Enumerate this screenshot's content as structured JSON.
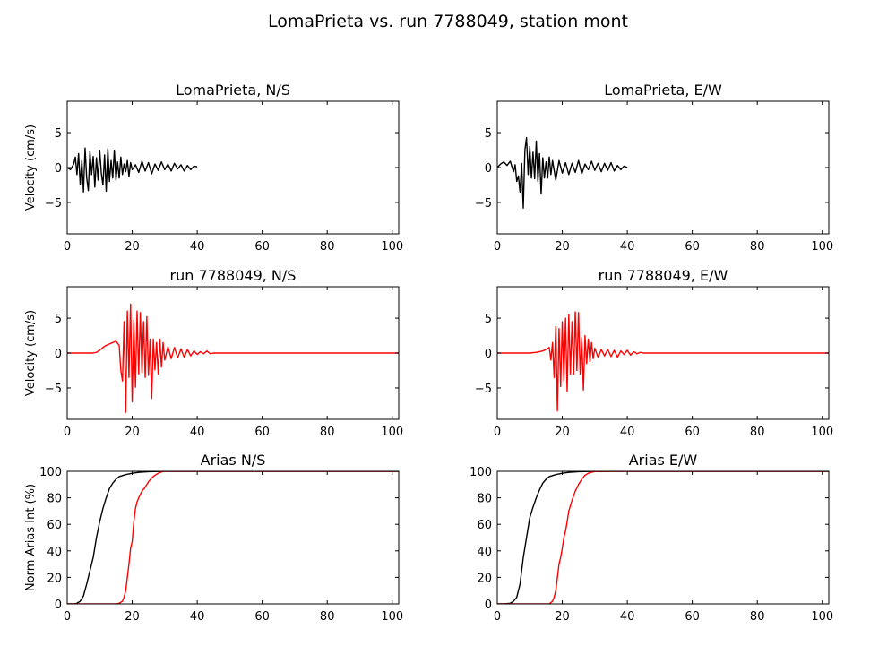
{
  "figure": {
    "suptitle": "LomaPrieta vs. run 7788049, station mont"
  },
  "colors": {
    "recorded": "#000000",
    "simulated": "#ff0000",
    "axes": "#000000",
    "background": "#ffffff"
  },
  "chart_data": [
    {
      "type": "line",
      "title": "LomaPrieta, N/S",
      "xlabel": "",
      "ylabel": "Velocity (cm/s)",
      "xlim": [
        0,
        102
      ],
      "ylim": [
        -9.5,
        9.5
      ],
      "xticks": [
        0,
        20,
        40,
        60,
        80,
        100
      ],
      "yticks": [
        -5,
        0,
        5
      ],
      "grid": false,
      "series": [
        {
          "color": "#000000",
          "x": [
            0,
            1,
            2,
            2.5,
            3,
            3.5,
            4,
            4.5,
            5,
            5.5,
            6,
            6.5,
            7,
            7.5,
            8,
            8.5,
            9,
            9.5,
            10,
            10.5,
            11,
            11.5,
            12,
            12.5,
            13,
            13.5,
            14,
            14.5,
            15,
            15.5,
            16,
            16.5,
            17,
            17.5,
            18,
            18.5,
            19,
            19.5,
            20,
            21,
            22,
            23,
            24,
            25,
            26,
            27,
            28,
            29,
            30,
            31,
            32,
            33,
            34,
            35,
            36,
            37,
            38,
            39,
            40
          ],
          "y": [
            0,
            -0.3,
            0.5,
            1.5,
            -1,
            2,
            -2.5,
            1,
            -3.5,
            2.8,
            -1.5,
            -3.3,
            2.3,
            -1,
            1.6,
            -2.8,
            1.4,
            -1.8,
            2.5,
            -0.8,
            -2.5,
            1.8,
            -3.4,
            2.7,
            -2,
            1,
            -1.5,
            2.5,
            -1.8,
            0.8,
            -1.5,
            1.5,
            -1,
            0.5,
            -0.6,
            1,
            -1.3,
            0.7,
            -0.3,
            0.4,
            -0.7,
            0.9,
            -0.5,
            0.7,
            -0.9,
            0.5,
            -0.4,
            0.8,
            -0.3,
            0.5,
            -0.5,
            0.6,
            -0.2,
            0.4,
            -0.5,
            0.3,
            -0.3,
            0.2,
            0.1
          ]
        }
      ]
    },
    {
      "type": "line",
      "title": "LomaPrieta, E/W",
      "xlabel": "",
      "ylabel": "",
      "xlim": [
        0,
        102
      ],
      "ylim": [
        -9.5,
        9.5
      ],
      "xticks": [
        0,
        20,
        40,
        60,
        80,
        100
      ],
      "yticks": [
        -5,
        0,
        5
      ],
      "grid": false,
      "series": [
        {
          "color": "#000000",
          "x": [
            0,
            1,
            2,
            3,
            4,
            5,
            5.5,
            6,
            6.5,
            7,
            7.5,
            8,
            8.5,
            9,
            9.5,
            10,
            10.5,
            11,
            11.5,
            12,
            12.5,
            13,
            13.5,
            14,
            14.5,
            15,
            15.5,
            16,
            16.5,
            17,
            18,
            19,
            20,
            21,
            22,
            23,
            24,
            25,
            26,
            27,
            28,
            29,
            30,
            31,
            32,
            33,
            34,
            35,
            36,
            37,
            38,
            39,
            40
          ],
          "y": [
            0,
            0.5,
            0.8,
            0.3,
            0.9,
            -0.6,
            0.4,
            -2,
            -1.2,
            -3.5,
            0.6,
            -5.8,
            2.5,
            4.3,
            -1,
            3,
            -1.5,
            2.2,
            -1.6,
            3.8,
            -2,
            2,
            -3.8,
            1.4,
            -1.5,
            0.8,
            -1.5,
            1.5,
            -1,
            1,
            -1.8,
            1,
            -0.8,
            0.7,
            -1,
            0.6,
            -0.7,
            1,
            -0.9,
            0.5,
            -0.3,
            0.9,
            -0.4,
            0.6,
            -0.6,
            0.6,
            -0.4,
            0.7,
            -0.5,
            0.3,
            -0.3,
            0.2,
            0
          ]
        }
      ]
    },
    {
      "type": "line",
      "title": "run 7788049, N/S",
      "xlabel": "",
      "ylabel": "Velocity (cm/s)",
      "xlim": [
        0,
        102
      ],
      "ylim": [
        -9.5,
        9.5
      ],
      "xticks": [
        0,
        20,
        40,
        60,
        80,
        100
      ],
      "yticks": [
        -5,
        0,
        5
      ],
      "grid": false,
      "series": [
        {
          "color": "#ff0000",
          "x": [
            0,
            8,
            9,
            10,
            11,
            12,
            13,
            14,
            15,
            16,
            16.5,
            17,
            17.5,
            18,
            18.5,
            19,
            19.5,
            20,
            20.5,
            21,
            21.5,
            22,
            22.5,
            23,
            23.5,
            24,
            24.5,
            25,
            25.5,
            26,
            26.5,
            27,
            27.5,
            28,
            28.5,
            29,
            29.5,
            30,
            31,
            32,
            33,
            34,
            35,
            36,
            37,
            38,
            39,
            40,
            41,
            42,
            43,
            44,
            45,
            50,
            60,
            80,
            102
          ],
          "y": [
            0,
            0,
            0.1,
            0.4,
            0.8,
            1.1,
            1.3,
            1.5,
            1.7,
            1.1,
            -2.5,
            -4,
            4.5,
            -8.5,
            6,
            -3.5,
            7,
            -7,
            4.7,
            -4.9,
            6,
            -3,
            5.8,
            -2.8,
            4.5,
            -3.5,
            5.2,
            -3.2,
            2,
            -6.5,
            2,
            -2.4,
            1.5,
            -3,
            2,
            -2,
            1.5,
            -1,
            0.9,
            -0.8,
            0.8,
            -0.7,
            0.6,
            -0.6,
            0.5,
            -0.4,
            0.3,
            -0.2,
            0.2,
            -0.1,
            0.3,
            -0.1,
            0,
            0,
            0,
            0,
            0
          ]
        }
      ]
    },
    {
      "type": "line",
      "title": "run 7788049, E/W",
      "xlabel": "",
      "ylabel": "",
      "xlim": [
        0,
        102
      ],
      "ylim": [
        -9.5,
        9.5
      ],
      "xticks": [
        0,
        20,
        40,
        60,
        80,
        100
      ],
      "yticks": [
        -5,
        0,
        5
      ],
      "grid": false,
      "series": [
        {
          "color": "#ff0000",
          "x": [
            0,
            10,
            12,
            14,
            15,
            16,
            16.5,
            17,
            17.5,
            18,
            18.5,
            19,
            19.5,
            20,
            20.5,
            21,
            21.5,
            22,
            22.5,
            23,
            23.5,
            24,
            24.5,
            25,
            25.5,
            26,
            26.5,
            27,
            27.5,
            28,
            28.5,
            29,
            29.5,
            30,
            31,
            32,
            33,
            34,
            35,
            36,
            37,
            38,
            39,
            40,
            41,
            42,
            43,
            44,
            45,
            50,
            60,
            80,
            102
          ],
          "y": [
            0,
            0,
            0.1,
            0.3,
            0.5,
            0.8,
            -1,
            1.5,
            -3.5,
            3.8,
            -8.3,
            3.5,
            -4.8,
            4.5,
            -4,
            5,
            -5.5,
            5.5,
            -3,
            4.5,
            -3,
            5.9,
            -2.5,
            5.8,
            -3,
            2.2,
            -5.3,
            2.5,
            -1.5,
            2,
            -1.2,
            1.5,
            -0.8,
            0.7,
            -0.6,
            0.5,
            -0.4,
            0.5,
            -0.5,
            0.4,
            -0.6,
            0.3,
            -0.2,
            0.4,
            -0.3,
            0.2,
            -0.1,
            0.1,
            0,
            0,
            0,
            0,
            0
          ]
        }
      ]
    },
    {
      "type": "line",
      "title": "Arias N/S",
      "xlabel": "",
      "ylabel": "Norm Arias Int (%)",
      "xlim": [
        0,
        102
      ],
      "ylim": [
        0,
        100
      ],
      "xticks": [
        0,
        20,
        40,
        60,
        80,
        100
      ],
      "yticks": [
        0,
        20,
        40,
        60,
        80,
        100
      ],
      "grid": false,
      "series": [
        {
          "color": "#000000",
          "x": [
            0,
            2,
            3,
            4,
            5,
            6,
            7,
            8,
            9,
            10,
            11,
            12,
            13,
            14,
            15,
            16,
            18,
            20,
            22,
            25,
            30,
            35,
            102
          ],
          "y": [
            0,
            0,
            0.5,
            2,
            6,
            15,
            25,
            35,
            50,
            62,
            72,
            80,
            87,
            91,
            94,
            96,
            97.5,
            98.5,
            99.2,
            99.7,
            100,
            100,
            100
          ]
        },
        {
          "color": "#ff0000",
          "x": [
            0,
            15,
            16,
            17,
            17.5,
            18,
            18.5,
            19,
            19.5,
            20,
            20.5,
            21,
            21.5,
            22,
            23,
            24,
            25,
            26,
            27,
            28,
            29,
            30,
            35,
            102
          ],
          "y": [
            0,
            0,
            0.5,
            2,
            5,
            10,
            20,
            30,
            42,
            47,
            62,
            72,
            77,
            80,
            85,
            88,
            92,
            95,
            97,
            98.5,
            99.5,
            100,
            100,
            100
          ]
        }
      ]
    },
    {
      "type": "line",
      "title": "Arias E/W",
      "xlabel": "",
      "ylabel": "",
      "xlim": [
        0,
        102
      ],
      "ylim": [
        0,
        100
      ],
      "xticks": [
        0,
        20,
        40,
        60,
        80,
        100
      ],
      "yticks": [
        0,
        20,
        40,
        60,
        80,
        100
      ],
      "grid": false,
      "series": [
        {
          "color": "#000000",
          "x": [
            0,
            2,
            4,
            5,
            6,
            7,
            8,
            9,
            10,
            11,
            12,
            13,
            14,
            15,
            16,
            18,
            20,
            22,
            25,
            30,
            35,
            102
          ],
          "y": [
            0,
            0,
            0.5,
            2,
            5,
            15,
            35,
            50,
            65,
            73,
            80,
            86,
            91,
            94,
            96,
            97.5,
            98.5,
            99.2,
            99.7,
            100,
            100,
            100
          ]
        },
        {
          "color": "#ff0000",
          "x": [
            0,
            16,
            17,
            17.5,
            18,
            18.5,
            19,
            19.5,
            20,
            20.5,
            21,
            21.5,
            22,
            23,
            24,
            25,
            26,
            27,
            28,
            29,
            30,
            35,
            102
          ],
          "y": [
            0,
            0,
            2,
            5,
            10,
            20,
            30,
            35,
            42,
            50,
            55,
            62,
            70,
            78,
            85,
            90,
            94,
            97,
            98.5,
            99.3,
            99.8,
            100,
            100
          ]
        }
      ]
    }
  ]
}
